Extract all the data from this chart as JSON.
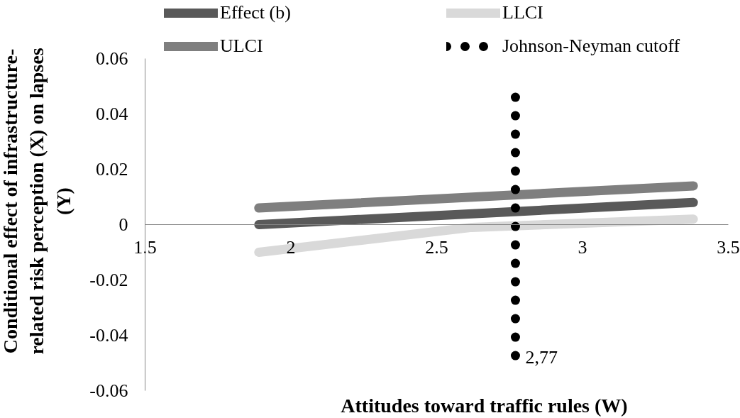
{
  "chart_data": {
    "type": "line",
    "xlabel": "Attitudes toward traffic rules (W)",
    "ylabel": "Conditional effect of infrastructure-related risk perception (X) on lapses (Y)",
    "xlim": [
      1.5,
      3.5
    ],
    "xticks": [
      1.5,
      2,
      2.5,
      3,
      3.5
    ],
    "ylim": [
      -0.06,
      0.06
    ],
    "yticks": [
      -0.06,
      -0.04,
      -0.02,
      0,
      0.02,
      0.04,
      0.06
    ],
    "legend": "top",
    "series": [
      {
        "name": "Effect (b)",
        "color": "#595959",
        "x": [
          1.89,
          3.38
        ],
        "values": [
          0.0,
          0.008
        ],
        "line_style": "solid"
      },
      {
        "name": "LLCI",
        "color": "#d9d9d9",
        "x": [
          1.89,
          2.62,
          3.38
        ],
        "values": [
          -0.01,
          -0.001,
          0.002
        ],
        "line_style": "solid"
      },
      {
        "name": "ULCI",
        "color": "#7f7f7f",
        "x": [
          1.89,
          3.38
        ],
        "values": [
          0.006,
          0.014
        ],
        "line_style": "solid"
      },
      {
        "name": "Johnson-Neyman cutoff",
        "color": "#000000",
        "x": [
          2.77,
          2.77
        ],
        "values": [
          0.046,
          -0.048
        ],
        "line_style": "dotted"
      }
    ],
    "annotations": [
      {
        "text": "2,77",
        "x": 2.77,
        "y": -0.048
      }
    ]
  }
}
